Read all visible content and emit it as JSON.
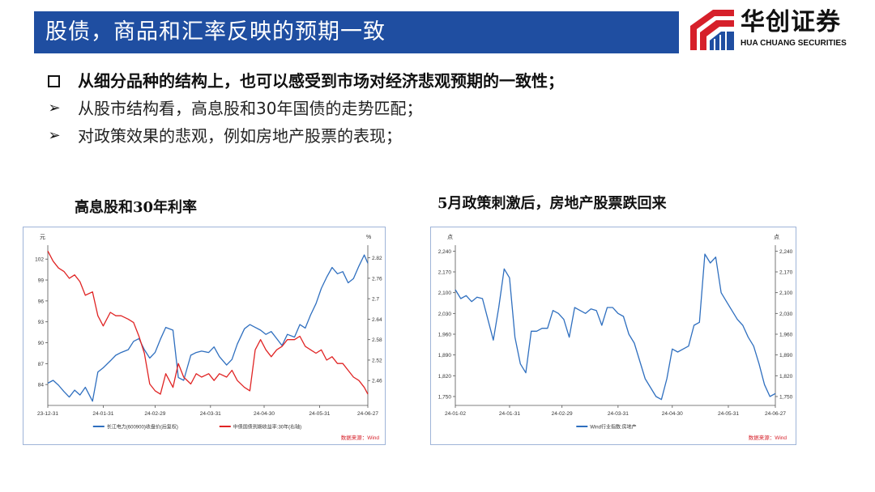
{
  "header": {
    "title": "股债，商品和汇率反映的预期一致",
    "colors": {
      "title_bar": "#1f4ea1",
      "logo_red": "#d6202a",
      "logo_blue": "#1f4ea1"
    }
  },
  "logo": {
    "cn": "华创证券",
    "en": "HUA CHUANG SECURITIES",
    "icon": "huachuang-logo-mark"
  },
  "bullets": [
    {
      "marker": "□",
      "text": "从细分品种的结构上，也可以感受到市场对经济悲观预期的一致性；"
    },
    {
      "marker": "➢",
      "text": "从股市结构看，高息股和30年国债的走势匹配；"
    },
    {
      "marker": "➢",
      "text": "对政策效果的悲观，例如房地产股票的表现；"
    }
  ],
  "chart_data": [
    {
      "type": "line",
      "title": "高息股和30年利率",
      "left_unit": "元",
      "right_unit": "%",
      "left_ticks": [
        "84",
        "87",
        "90",
        "93",
        "96",
        "99",
        "102"
      ],
      "right_ticks": [
        "2.46",
        "2.52",
        "2.58",
        "2.64",
        "2.7",
        "2.76",
        "2.82"
      ],
      "x_ticks": [
        "23-12-31",
        "24-01-31",
        "24-02-29",
        "24-03-31",
        "24-04-30",
        "24-05-31",
        "24-06-27"
      ],
      "ylim_left": [
        81,
        104
      ],
      "ylim_right": [
        2.387,
        2.857
      ],
      "xlim": [
        0,
        179
      ],
      "source": "数据来源：Wind",
      "grid": false,
      "legend_position": "bottom",
      "series": [
        {
          "name": "长江电力(600900)收盘价(后复权)",
          "axis": "left",
          "color": "#2f6fbf",
          "x": [
            0,
            3,
            6,
            9,
            12,
            15,
            18,
            21,
            25,
            28,
            31,
            35,
            38,
            41,
            45,
            48,
            51,
            54,
            57,
            60,
            63,
            66,
            70,
            73,
            76,
            80,
            83,
            86,
            90,
            93,
            96,
            100,
            103,
            106,
            110,
            113,
            116,
            119,
            122,
            125,
            128,
            131,
            134,
            138,
            141,
            144,
            147,
            150,
            153,
            156,
            159,
            162,
            165,
            168,
            171,
            174,
            177,
            179
          ],
          "values": [
            84.2,
            84.6,
            83.9,
            83.0,
            82.2,
            83.2,
            82.5,
            83.6,
            81.6,
            85.8,
            86.4,
            87.4,
            88.2,
            88.6,
            89.0,
            90.2,
            90.6,
            89.0,
            87.8,
            88.6,
            90.5,
            92.2,
            91.8,
            85.0,
            84.6,
            88.2,
            88.6,
            88.8,
            88.6,
            89.4,
            88.0,
            86.8,
            87.6,
            89.8,
            92.0,
            92.6,
            92.2,
            91.8,
            91.2,
            91.6,
            90.6,
            89.6,
            91.2,
            90.8,
            92.6,
            92.1,
            94.0,
            95.6,
            97.8,
            99.4,
            100.8,
            99.9,
            100.2,
            98.6,
            99.2,
            101.0,
            102.6,
            101.4
          ]
        },
        {
          "name": "中债国债到期收益率:30年(右轴)",
          "axis": "right",
          "color": "#e02424",
          "x": [
            0,
            3,
            6,
            9,
            12,
            15,
            18,
            21,
            25,
            28,
            31,
            35,
            38,
            41,
            45,
            48,
            51,
            54,
            57,
            60,
            63,
            66,
            70,
            73,
            76,
            80,
            83,
            86,
            90,
            93,
            96,
            100,
            103,
            106,
            110,
            113,
            116,
            119,
            122,
            125,
            128,
            131,
            134,
            138,
            141,
            144,
            147,
            150,
            153,
            156,
            159,
            162,
            165,
            168,
            171,
            174,
            177,
            179
          ],
          "values": [
            2.84,
            2.81,
            2.79,
            2.78,
            2.76,
            2.77,
            2.75,
            2.71,
            2.72,
            2.65,
            2.62,
            2.66,
            2.65,
            2.65,
            2.64,
            2.63,
            2.59,
            2.54,
            2.45,
            2.43,
            2.42,
            2.48,
            2.44,
            2.51,
            2.47,
            2.45,
            2.48,
            2.47,
            2.48,
            2.46,
            2.48,
            2.47,
            2.49,
            2.46,
            2.44,
            2.43,
            2.55,
            2.58,
            2.55,
            2.53,
            2.55,
            2.56,
            2.58,
            2.58,
            2.59,
            2.56,
            2.55,
            2.54,
            2.55,
            2.52,
            2.53,
            2.51,
            2.51,
            2.49,
            2.47,
            2.46,
            2.44,
            2.42
          ]
        }
      ]
    },
    {
      "type": "line",
      "title": "5月政策刺激后，房地产股票跌回来",
      "left_unit": "点",
      "right_unit": "点",
      "left_ticks": [
        "1,750",
        "1,820",
        "1,890",
        "1,960",
        "2,030",
        "2,100",
        "2,170",
        "2,240"
      ],
      "right_ticks": [
        "1,750",
        "1,820",
        "1,890",
        "1,960",
        "2,030",
        "2,100",
        "2,170",
        "2,240"
      ],
      "x_ticks": [
        "24-01-02",
        "24-01-31",
        "24-02-29",
        "24-03-31",
        "24-04-30",
        "24-05-31",
        "24-06-27"
      ],
      "ylim_left": [
        1720,
        2260
      ],
      "ylim_right": [
        1720,
        2260
      ],
      "xlim": [
        1,
        178
      ],
      "source": "数据来源：Wind",
      "grid": false,
      "legend_position": "bottom",
      "series": [
        {
          "name": "Wind行业指数:房地产",
          "axis": "left",
          "color": "#2f6fbf",
          "x": [
            1,
            4,
            7,
            10,
            13,
            16,
            19,
            22,
            25,
            28,
            31,
            34,
            37,
            40,
            43,
            46,
            49,
            52,
            55,
            58,
            61,
            64,
            67,
            70,
            73,
            76,
            79,
            82,
            85,
            88,
            91,
            94,
            97,
            100,
            103,
            106,
            109,
            112,
            115,
            118,
            121,
            124,
            127,
            130,
            133,
            136,
            139,
            142,
            145,
            148,
            151,
            154,
            157,
            160,
            163,
            166,
            169,
            172,
            175,
            178
          ],
          "values": [
            2110,
            2080,
            2090,
            2070,
            2085,
            2080,
            2010,
            1940,
            2050,
            2180,
            2150,
            1950,
            1860,
            1830,
            1970,
            1970,
            1980,
            1980,
            2040,
            2030,
            2010,
            1950,
            2050,
            2040,
            2030,
            2045,
            2040,
            1990,
            2050,
            2050,
            2030,
            2020,
            1960,
            1930,
            1870,
            1810,
            1780,
            1750,
            1740,
            1810,
            1910,
            1900,
            1910,
            1920,
            1990,
            2000,
            2230,
            2200,
            2220,
            2100,
            2070,
            2040,
            2010,
            1990,
            1950,
            1920,
            1860,
            1790,
            1750,
            1760
          ]
        }
      ]
    }
  ]
}
